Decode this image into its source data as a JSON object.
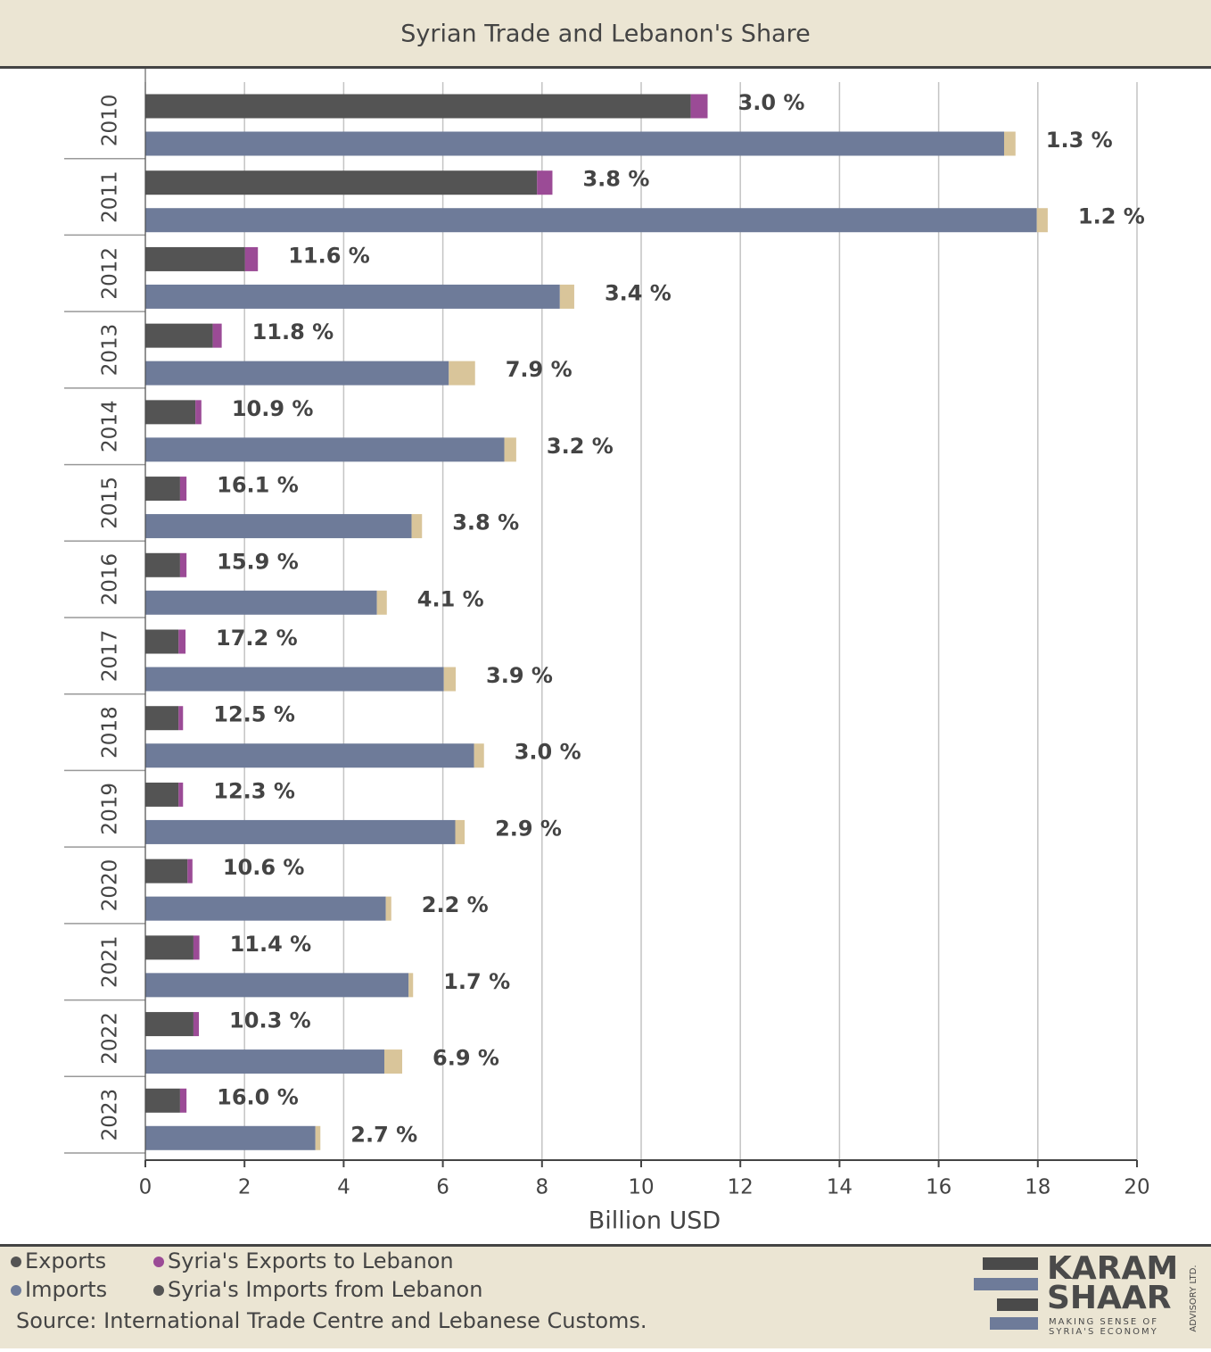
{
  "chart_data": {
    "type": "stacked-bar-horizontal",
    "title": "Syrian Trade and Lebanon's Share",
    "categories": [
      "2010",
      "2011",
      "2012",
      "2013",
      "2014",
      "2015",
      "2016",
      "2017",
      "2018",
      "2019",
      "2020",
      "2021",
      "2022",
      "2023"
    ],
    "series": [
      {
        "name": "Exports",
        "color": "#545454",
        "stack": "exports",
        "values": [
          11.0,
          7.9,
          2.01,
          1.36,
          1.01,
          0.7,
          0.7,
          0.67,
          0.67,
          0.67,
          0.85,
          0.97,
          0.97,
          0.7
        ]
      },
      {
        "name": "Syria's Exports to Lebanon",
        "color": "#9b4b96",
        "stack": "exports",
        "values": [
          0.34,
          0.31,
          0.26,
          0.18,
          0.12,
          0.13,
          0.13,
          0.14,
          0.09,
          0.09,
          0.1,
          0.12,
          0.11,
          0.13
        ],
        "share_labels": [
          "3.0 %",
          "3.8 %",
          "11.6 %",
          "11.8 %",
          "10.9 %",
          "16.1 %",
          "15.9 %",
          "17.2 %",
          "12.5 %",
          "12.3 %",
          "10.6 %",
          "11.4 %",
          "10.3 %",
          "16.0 %"
        ]
      },
      {
        "name": "Imports",
        "color": "#6e7b99",
        "stack": "imports",
        "values": [
          17.32,
          17.98,
          8.36,
          6.12,
          7.24,
          5.37,
          4.67,
          6.02,
          6.63,
          6.25,
          4.85,
          5.31,
          4.82,
          3.43
        ]
      },
      {
        "name": "Syria's Imports from Lebanon",
        "color": "#d9c59a",
        "legend_color": "#545454",
        "stack": "imports",
        "values": [
          0.23,
          0.22,
          0.29,
          0.53,
          0.24,
          0.21,
          0.2,
          0.24,
          0.2,
          0.19,
          0.11,
          0.09,
          0.36,
          0.1
        ],
        "share_labels": [
          "1.3 %",
          "1.2 %",
          "3.4 %",
          "7.9 %",
          "3.2 %",
          "3.8 %",
          "4.1 %",
          "3.9 %",
          "3.0 %",
          "2.9 %",
          "2.2 %",
          "1.7 %",
          "6.9 %",
          "2.7 %"
        ]
      }
    ],
    "xlabel": "Billion USD",
    "xlim": [
      0,
      20
    ],
    "xticks": [
      0,
      2,
      4,
      6,
      8,
      10,
      12,
      14,
      16,
      18,
      20
    ],
    "grid": true,
    "source": "Source: International Trade Centre and Lebanese Customs."
  },
  "logo": {
    "line1": "KARAM",
    "line2": "SHAAR",
    "tagline1": "MAKING SENSE OF",
    "tagline2": "SYRIA'S ECONOMY",
    "side": "ADVISORY LTD."
  }
}
